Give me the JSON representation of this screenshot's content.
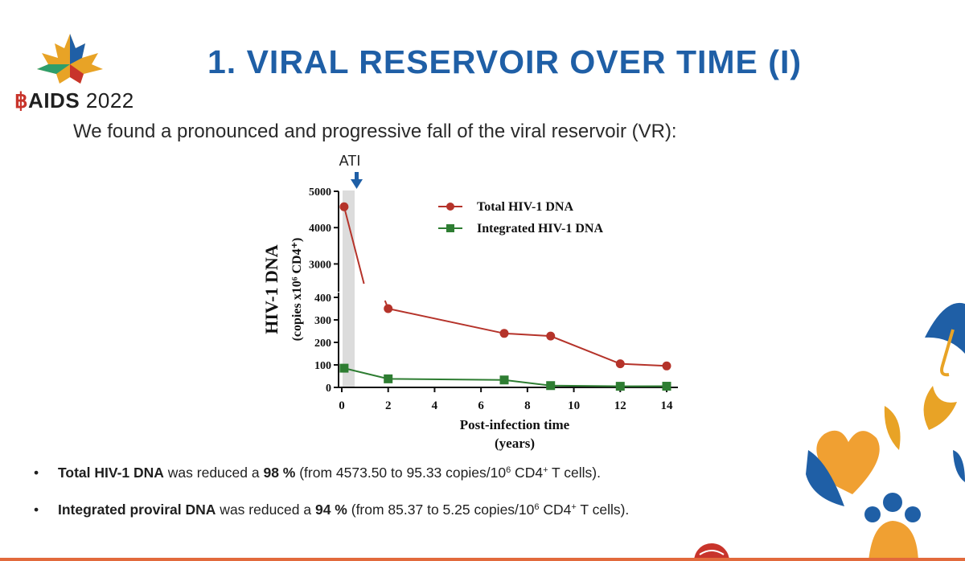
{
  "conference": {
    "ribbon": "฿",
    "brand": "AIDS",
    "year": "2022"
  },
  "title": "1. VIRAL RESERVOIR OVER TIME (I)",
  "subtitle": "We found a pronounced and progressive fall of the viral reservoir (VR):",
  "chart_data": {
    "type": "line",
    "annotation": "ATI",
    "xlabel": "Post-infection time",
    "xlabel_unit": "(years)",
    "ylabel": "HIV-1 DNA",
    "ylabel_unit": "(copies x10⁶ CD4⁺)",
    "xlim": [
      0,
      14
    ],
    "x_ticks": [
      "0",
      "2",
      "4",
      "6",
      "8",
      "10",
      "12",
      "14"
    ],
    "y_ticks_lower": [
      "0",
      "100",
      "200",
      "300",
      "400"
    ],
    "y_ticks_upper": [
      "3000",
      "4000",
      "5000"
    ],
    "broken_y_axis": true,
    "legend_position": "top-right",
    "series": [
      {
        "name": "Total HIV-1 DNA",
        "color": "#b5332a",
        "marker": "circle",
        "x": [
          0.1,
          2,
          7,
          9,
          12,
          14
        ],
        "y": [
          4573.5,
          350,
          240,
          228,
          105,
          95.33
        ]
      },
      {
        "name": "Integrated HIV-1 DNA",
        "color": "#2e7d32",
        "marker": "square",
        "x": [
          0.1,
          2,
          7,
          9,
          12,
          14
        ],
        "y": [
          85.37,
          38,
          33,
          8,
          5,
          5.25
        ]
      }
    ]
  },
  "bullets": [
    {
      "dot": "•",
      "bold": "Total HIV-1 DNA",
      "mid": " was reduced a ",
      "pct": "98 %",
      "tail": " (from 4573.50 to 95.33 copies/10",
      "sup": "6",
      "tail2": " CD4",
      "sup2": "+",
      "end": " T cells)."
    },
    {
      "dot": "•",
      "bold": "Integrated proviral DNA",
      "mid": " was reduced a ",
      "pct": "94 %",
      "tail": " (from 85.37 to 5.25 copies/10",
      "sup": "6",
      "tail2": " CD4",
      "sup2": "+",
      "end": " T cells)."
    }
  ]
}
